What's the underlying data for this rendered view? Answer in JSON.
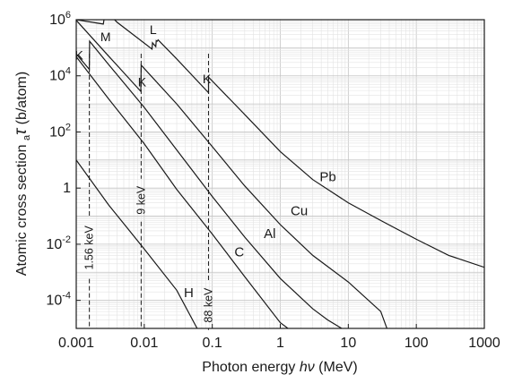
{
  "chart_data": {
    "type": "line",
    "xlabel_main": "Photon energy ",
    "xlabel_symbol": "hν",
    "xlabel_unit": " (MeV)",
    "ylabel_main": "Atomic cross section ",
    "ylabel_sub": "a",
    "ylabel_symbol": "τ",
    "ylabel_unit": " (b/atom)",
    "xscale": "log",
    "yscale": "log",
    "xlim": [
      0.001,
      1000
    ],
    "ylim": [
      1e-05,
      1000000
    ],
    "grid": true,
    "x_ticks": [
      {
        "value": 0.001,
        "label": "0.001"
      },
      {
        "value": 0.01,
        "label": "0.01"
      },
      {
        "value": 0.1,
        "label": "0.1"
      },
      {
        "value": 1,
        "label": "1"
      },
      {
        "value": 10,
        "label": "10"
      },
      {
        "value": 100,
        "label": "100"
      },
      {
        "value": 1000,
        "label": "1000"
      }
    ],
    "y_ticks": [
      {
        "value": 0.0001,
        "mant": "10",
        "exp": "-4"
      },
      {
        "value": 0.01,
        "mant": "10",
        "exp": "-2"
      },
      {
        "value": 1,
        "mant": "1",
        "exp": ""
      },
      {
        "value": 100,
        "mant": "10",
        "exp": "2"
      },
      {
        "value": 10000,
        "mant": "10",
        "exp": "4"
      },
      {
        "value": 1000000,
        "mant": "10",
        "exp": "6"
      }
    ],
    "series": [
      {
        "name": "H",
        "label_at": [
          0.045,
          0.0002
        ],
        "points": [
          [
            0.001,
            10
          ],
          [
            0.003,
            0.25
          ],
          [
            0.01,
            0.0068
          ],
          [
            0.03,
            0.00023
          ],
          [
            0.06,
            1e-05
          ]
        ]
      },
      {
        "name": "C",
        "label_at": [
          0.25,
          0.0058
        ],
        "points": [
          [
            0.001,
            48000
          ],
          [
            0.003,
            1500
          ],
          [
            0.01,
            38
          ],
          [
            0.03,
            0.9
          ],
          [
            0.1,
            0.023
          ],
          [
            0.3,
            0.0007
          ],
          [
            1,
            1.6e-05
          ],
          [
            1.3,
            1e-05
          ]
        ]
      },
      {
        "name": "Al",
        "label_at": [
          0.7,
          0.026
        ],
        "points": [
          [
            0.001,
            60000
          ],
          [
            0.00156,
            17000
          ],
          [
            0.00157,
            170000
          ],
          [
            0.003,
            25000
          ],
          [
            0.01,
            750
          ],
          [
            0.03,
            23
          ],
          [
            0.1,
            0.5
          ],
          [
            0.3,
            0.018
          ],
          [
            1,
            0.0006
          ],
          [
            3,
            5e-05
          ],
          [
            5,
            2e-05
          ],
          [
            8,
            1e-05
          ]
        ]
      },
      {
        "name": "Cu",
        "label_at": [
          1.9,
          0.17
        ],
        "points": [
          [
            0.001,
            950000
          ],
          [
            0.003,
            50000
          ],
          [
            0.0089,
            2800
          ],
          [
            0.009,
            24000
          ],
          [
            0.03,
            1000
          ],
          [
            0.1,
            30
          ],
          [
            0.3,
            1.2
          ],
          [
            1,
            0.05
          ],
          [
            3,
            0.004
          ],
          [
            10,
            0.00045
          ],
          [
            30,
            4e-05
          ],
          [
            37,
            1e-05
          ]
        ]
      },
      {
        "name": "Pb",
        "label_at": [
          5,
          2.7
        ],
        "points": [
          [
            0.001,
            1000000
          ],
          [
            0.0025,
            700000
          ],
          [
            0.0026,
            1300000
          ],
          [
            0.003,
            1100000
          ],
          [
            0.0031,
            1500000
          ],
          [
            0.004,
            800000
          ],
          [
            0.013,
            90000
          ],
          [
            0.0132,
            150000
          ],
          [
            0.0148,
            110000
          ],
          [
            0.015,
            180000
          ],
          [
            0.0155,
            170000
          ],
          [
            0.016,
            190000
          ],
          [
            0.03,
            40000
          ],
          [
            0.088,
            2500
          ],
          [
            0.08801,
            9000
          ],
          [
            0.3,
            420
          ],
          [
            1,
            20
          ],
          [
            3,
            2
          ],
          [
            10,
            0.3
          ],
          [
            30,
            0.07
          ],
          [
            100,
            0.015
          ],
          [
            300,
            0.004
          ],
          [
            1000,
            0.0015
          ]
        ]
      }
    ],
    "edge_labels": [
      {
        "text": "M",
        "at": [
          0.0027,
          250000
        ]
      },
      {
        "text": "L",
        "at": [
          0.0135,
          450000
        ]
      },
      {
        "text": "K",
        "at": [
          0.0011,
          55000
        ]
      },
      {
        "text": "K",
        "at": [
          0.0093,
          6000
        ]
      },
      {
        "text": "K",
        "at": [
          0.083,
          8000
        ]
      }
    ],
    "markers": [
      {
        "x": 0.00156,
        "label": "1.56 keV",
        "label_center_y": 0.0075
      },
      {
        "x": 0.009,
        "label": "9 keV",
        "label_center_y": 0.37
      },
      {
        "x": 0.088,
        "label": "88 keV",
        "label_center_y": 6.7e-05
      }
    ]
  }
}
